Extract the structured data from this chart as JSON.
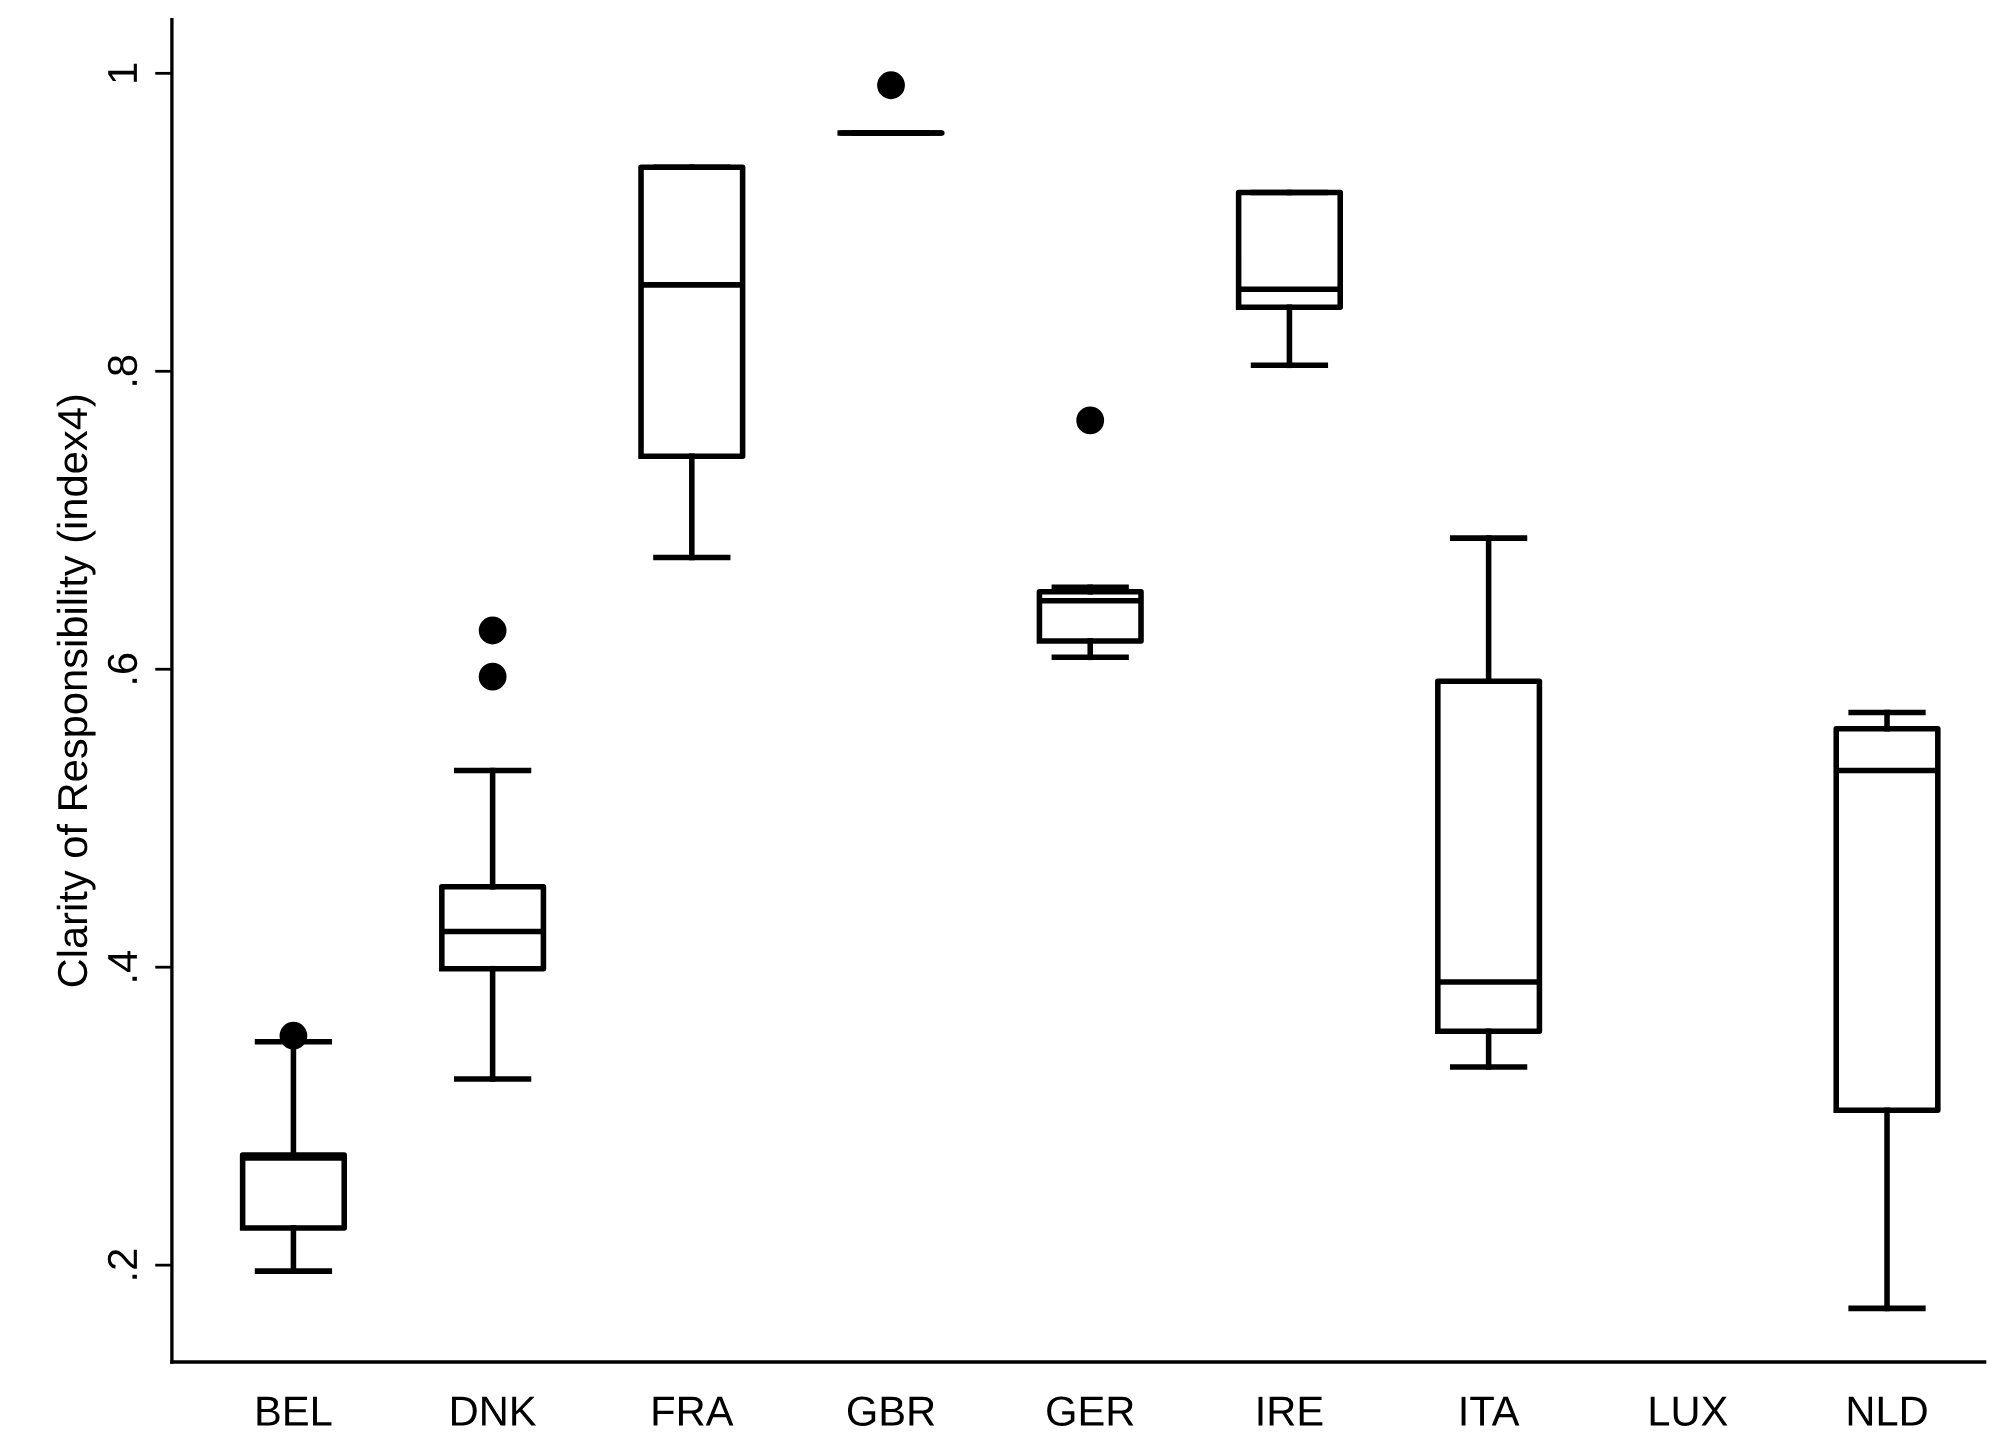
{
  "chart_data": {
    "type": "box",
    "ylabel": "Clarity of Responsibility (index4)",
    "categories": [
      "BEL",
      "DNK",
      "FRA",
      "GBR",
      "GER",
      "IRE",
      "ITA",
      "LUX",
      "NLD"
    ],
    "boxes": [
      {
        "low": 0.196,
        "q1": 0.225,
        "median": 0.272,
        "q3": 0.274,
        "high": 0.35,
        "outliers": [
          0.354
        ]
      },
      {
        "low": 0.325,
        "q1": 0.399,
        "median": 0.424,
        "q3": 0.454,
        "high": 0.532,
        "outliers": [
          0.595,
          0.626
        ]
      },
      {
        "low": 0.675,
        "q1": 0.743,
        "median": 0.858,
        "q3": 0.937,
        "high": 0.937
      },
      {
        "low": 0.96,
        "q1": 0.96,
        "median": 0.96,
        "q3": 0.96,
        "high": 0.96,
        "outliers": [
          0.992
        ]
      },
      {
        "low": 0.608,
        "q1": 0.619,
        "median": 0.646,
        "q3": 0.652,
        "high": 0.655,
        "outliers": [
          0.767
        ]
      },
      {
        "low": 0.804,
        "q1": 0.843,
        "median": 0.855,
        "q3": 0.92,
        "high": 0.92
      },
      {
        "low": 0.333,
        "q1": 0.357,
        "median": 0.39,
        "q3": 0.592,
        "high": 0.688
      },
      null,
      {
        "low": 0.171,
        "q1": 0.304,
        "median": 0.532,
        "q3": 0.56,
        "high": 0.571
      }
    ],
    "color": "#000000",
    "ylim": [
      0.135,
      1.036
    ],
    "yticks": [
      {
        "value": 0.2,
        "label": ".2"
      },
      {
        "value": 0.4,
        "label": ".4"
      },
      {
        "value": 0.6,
        "label": ".6"
      },
      {
        "value": 0.8,
        "label": ".8"
      },
      {
        "value": 1,
        "label": "1"
      }
    ],
    "grid": false,
    "legend": false
  }
}
